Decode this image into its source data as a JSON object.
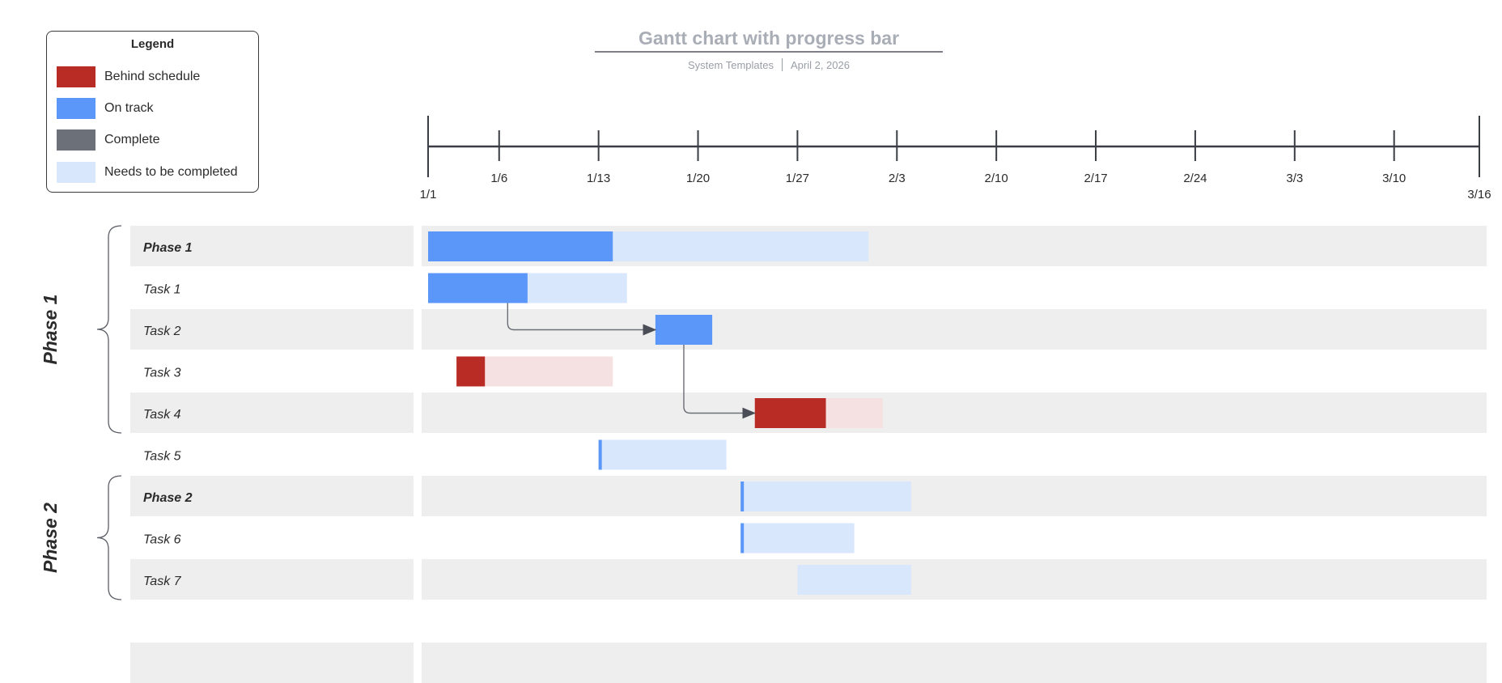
{
  "title": "Gantt chart with progress bar",
  "subtitle": {
    "source": "System Templates",
    "date": "April 2, 2026"
  },
  "legend": {
    "title": "Legend",
    "items": [
      {
        "label": "Behind schedule",
        "color": "#b92b25"
      },
      {
        "label": "On track",
        "color": "#5b97f8"
      },
      {
        "label": "Complete",
        "color": "#6b7079"
      },
      {
        "label": "Needs to be completed",
        "color": "#d9e7fd"
      }
    ]
  },
  "chart_data": {
    "type": "gantt",
    "x_axis": {
      "start": "1/1",
      "end": "3/16",
      "ticks": [
        "1/1",
        "1/6",
        "1/13",
        "1/20",
        "1/27",
        "2/3",
        "2/10",
        "2/17",
        "2/24",
        "3/3",
        "3/10",
        "3/16"
      ]
    },
    "phases": [
      {
        "label": "Phase 1",
        "rows": [
          "Phase 1",
          "Task 1",
          "Task 2",
          "Task 3",
          "Task 4"
        ]
      },
      {
        "label": "Phase 2",
        "rows": [
          "Phase 2",
          "Task 6",
          "Task 7"
        ]
      }
    ],
    "rows": [
      {
        "label": "Phase 1",
        "summary": true,
        "start": "1/1",
        "end": "2/1",
        "progress_end": "1/14",
        "status": "On track"
      },
      {
        "label": "Task 1",
        "summary": false,
        "start": "1/1",
        "end": "1/15",
        "progress_end": "1/8",
        "status": "On track"
      },
      {
        "label": "Task 2",
        "summary": false,
        "start": "1/17",
        "end": "1/21",
        "progress_end": "1/21",
        "status": "On track"
      },
      {
        "label": "Task 3",
        "summary": false,
        "start": "1/3",
        "end": "1/14",
        "progress_end": "1/5",
        "status": "Behind schedule"
      },
      {
        "label": "Task 4",
        "summary": false,
        "start": "1/24",
        "end": "2/2",
        "progress_end": "1/29",
        "status": "Behind schedule"
      },
      {
        "label": "Task 5",
        "summary": false,
        "start": "1/13",
        "end": "1/22",
        "progress_end": "1/13",
        "status": "On track"
      },
      {
        "label": "Phase 2",
        "summary": true,
        "start": "1/23",
        "end": "2/4",
        "progress_end": "1/23",
        "status": "On track"
      },
      {
        "label": "Task 6",
        "summary": false,
        "start": "1/23",
        "end": "1/31",
        "progress_end": "1/23",
        "status": "On track"
      },
      {
        "label": "Task 7",
        "summary": false,
        "start": "1/27",
        "end": "2/4",
        "progress_end": null,
        "status": "Needs to be completed"
      },
      {
        "label": "",
        "summary": false,
        "start": null,
        "end": null,
        "progress_end": null,
        "status": null
      }
    ],
    "dependencies": [
      {
        "from": "Task 1",
        "to": "Task 2"
      },
      {
        "from": "Task 2",
        "to": "Task 4"
      }
    ]
  }
}
